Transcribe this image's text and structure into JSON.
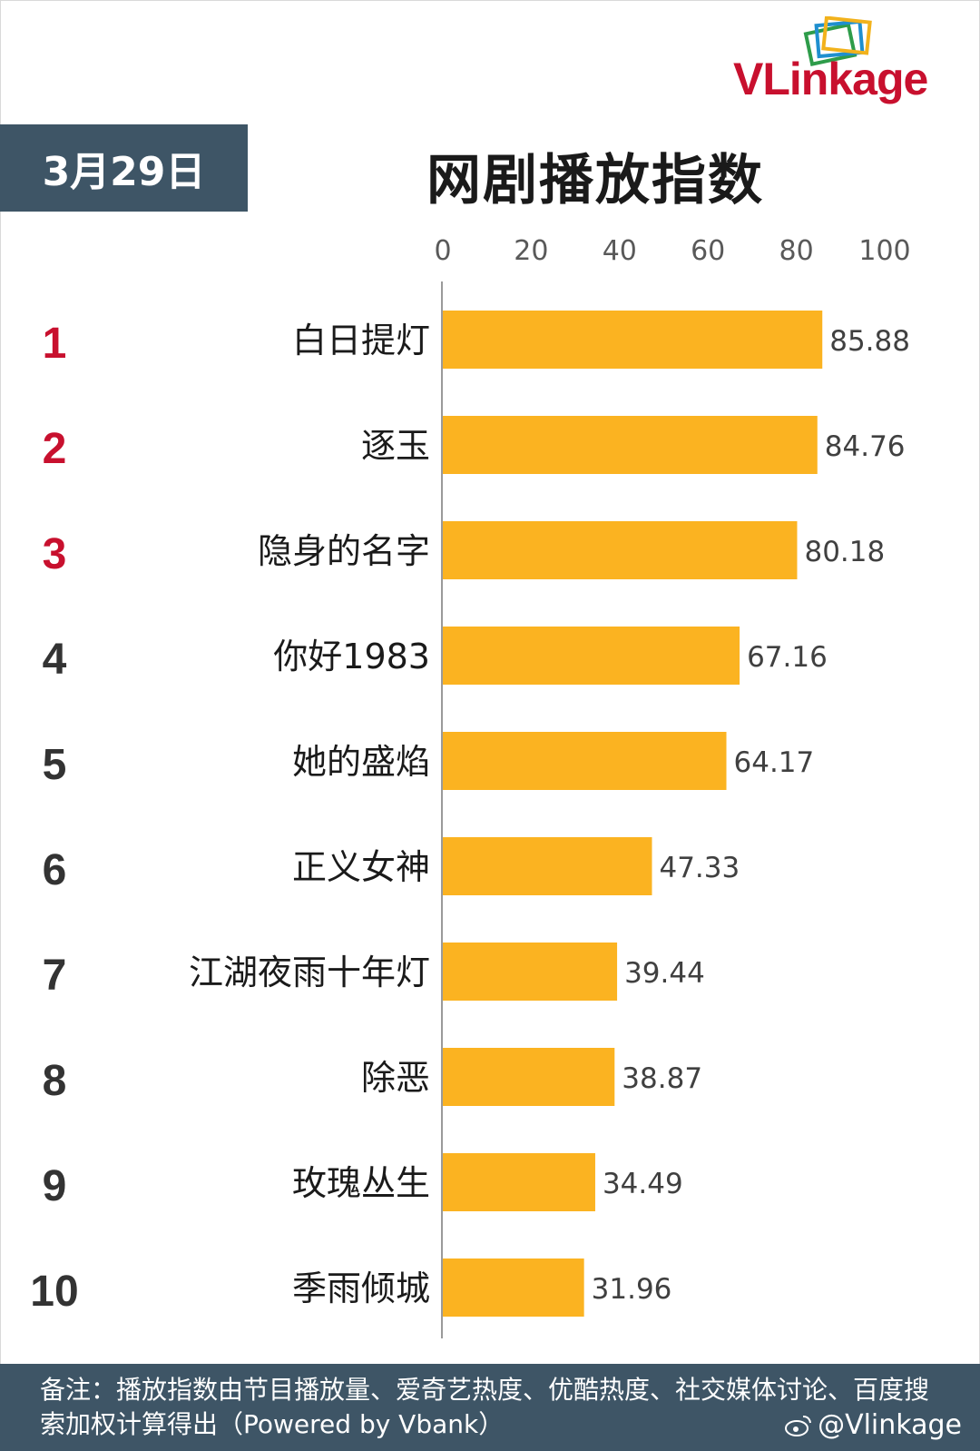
{
  "header": {
    "date": "3月29日",
    "title": "网剧播放指数",
    "logo": {
      "prefix": "VLink",
      "suffix": "age"
    }
  },
  "chart_data": {
    "type": "bar",
    "orientation": "horizontal",
    "title": "网剧播放指数",
    "xlim": [
      0,
      100
    ],
    "xticks": [
      "0",
      "20",
      "40",
      "60",
      "80",
      "100"
    ],
    "ranks": [
      "1",
      "2",
      "3",
      "4",
      "5",
      "6",
      "7",
      "8",
      "9",
      "10"
    ],
    "categories": [
      "白日提灯",
      "逐玉",
      "隐身的名字",
      "你好1983",
      "她的盛焰",
      "正义女神",
      "江湖夜雨十年灯",
      "除恶",
      "玫瑰丛生",
      "季雨倾城"
    ],
    "values": [
      85.88,
      84.76,
      80.18,
      67.16,
      64.17,
      47.33,
      39.44,
      38.87,
      34.49,
      31.96
    ],
    "value_labels": [
      "85.88",
      "84.76",
      "80.18",
      "67.16",
      "64.17",
      "47.33",
      "39.44",
      "38.87",
      "34.49",
      "31.96"
    ],
    "bar_color": "#fbb321",
    "top_rank_color": "#c8102e",
    "rank_color": "#333333",
    "grid": false
  },
  "footer": {
    "note": "备注：播放指数由节目播放量、爱奇艺热度、优酷热度、社交媒体讨论、百度搜索加权计算得出（Powered by Vbank）",
    "watermark": "@Vlinkage"
  },
  "colors": {
    "header_bg": "#3e5566",
    "brand_red": "#c8102e"
  }
}
